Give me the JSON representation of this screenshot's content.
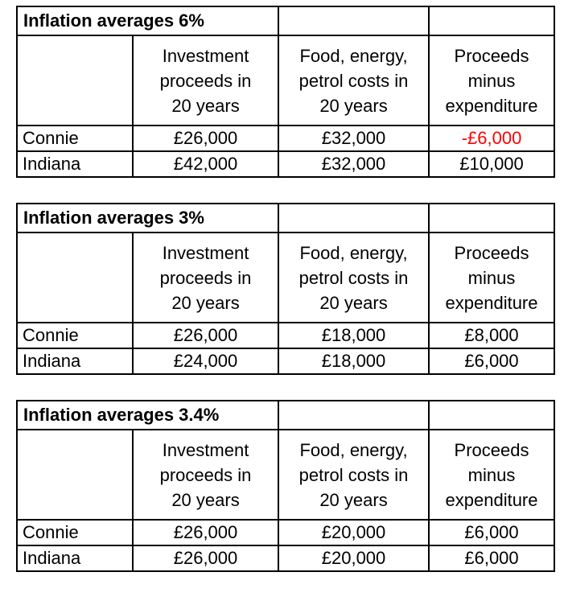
{
  "colors": {
    "background": "#ffffff",
    "text": "#000000",
    "border": "#000000",
    "negative_value": "#ff0000"
  },
  "tables": [
    {
      "title": "Inflation averages 6%",
      "headers": {
        "row_label": "",
        "investment": "Investment\nproceeds in\n20 years",
        "costs": "Food, energy,\npetrol costs in\n20 years",
        "net": "Proceeds\nminus\nexpenditure"
      },
      "rows": [
        {
          "name": "Connie",
          "investment": "£26,000",
          "costs": "£32,000",
          "net": "-£6,000"
        },
        {
          "name": "Indiana",
          "investment": "£42,000",
          "costs": "£32,000",
          "net": "£10,000"
        }
      ]
    },
    {
      "title": "Inflation averages 3%",
      "headers": {
        "row_label": "",
        "investment": "Investment\nproceeds in\n20 years",
        "costs": "Food, energy,\npetrol costs in\n20 years",
        "net": "Proceeds\nminus\nexpenditure"
      },
      "rows": [
        {
          "name": "Connie",
          "investment": "£26,000",
          "costs": "£18,000",
          "net": "£8,000"
        },
        {
          "name": "Indiana",
          "investment": "£24,000",
          "costs": "£18,000",
          "net": "£6,000"
        }
      ]
    },
    {
      "title": "Inflation averages 3.4%",
      "headers": {
        "row_label": "",
        "investment": "Investment\nproceeds in\n20 years",
        "costs": "Food, energy,\npetrol costs in\n20 years",
        "net": "Proceeds\nminus\nexpenditure"
      },
      "rows": [
        {
          "name": "Connie",
          "investment": "£26,000",
          "costs": "£20,000",
          "net": "£6,000"
        },
        {
          "name": "Indiana",
          "investment": "£26,000",
          "costs": "£20,000",
          "net": "£6,000"
        }
      ]
    }
  ]
}
